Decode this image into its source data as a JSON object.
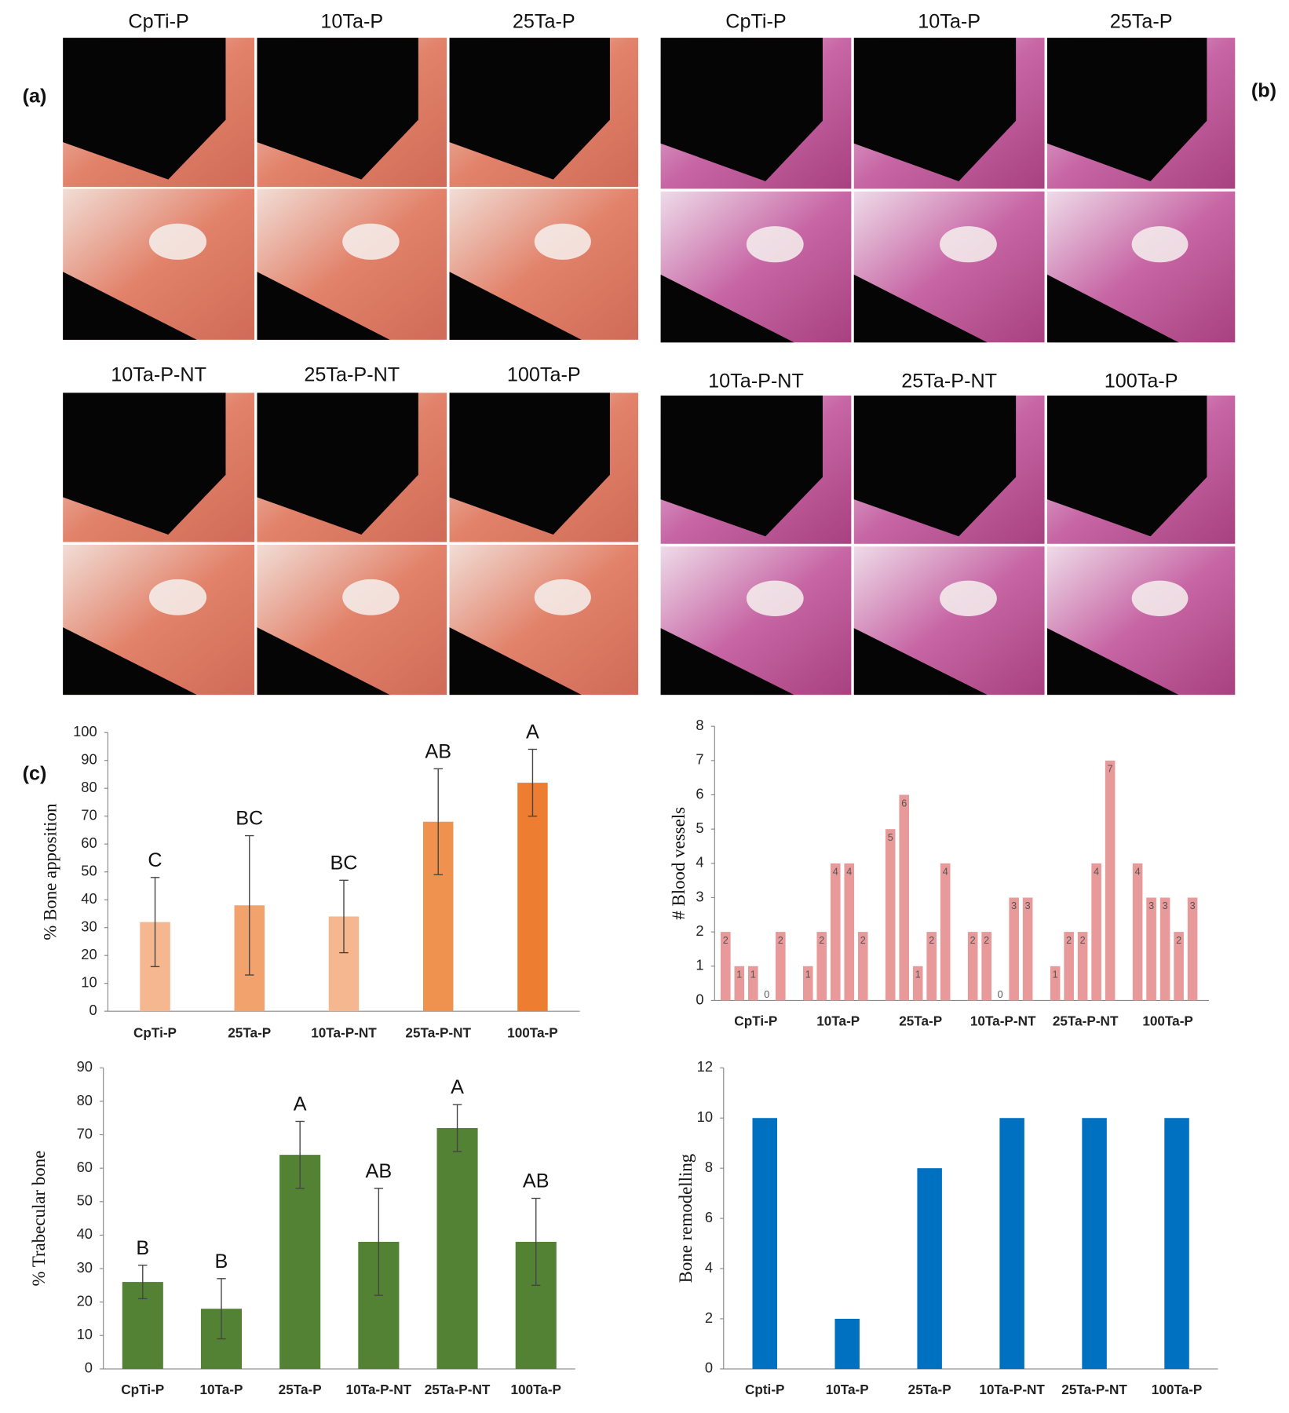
{
  "panel_labels": [
    "(a)",
    "(b)",
    "(c)"
  ],
  "image_panels": {
    "a": {
      "row1": [
        "CpTi-P",
        "10Ta-P",
        "25Ta-P"
      ],
      "row2": [
        "10Ta-P-NT",
        "25Ta-P-NT",
        "100Ta-P"
      ]
    },
    "b": {
      "row1": [
        "CpTi-P",
        "10Ta-P",
        "25Ta-P"
      ],
      "row2": [
        "10Ta-P-NT",
        "25Ta-P-NT",
        "100Ta-P"
      ]
    }
  },
  "chart_data": [
    {
      "type": "bar",
      "y_label": "% Bone apposition",
      "categories": [
        "CpTi-P",
        "25Ta-P",
        "10Ta-P-NT",
        "25Ta-P-NT",
        "100Ta-P"
      ],
      "values": [
        32,
        38,
        34,
        68,
        82
      ],
      "errors": [
        16,
        25,
        13,
        19,
        12
      ],
      "annotations": [
        "C",
        "BC",
        "BC",
        "AB",
        "A"
      ],
      "colors": [
        "#f4b78f",
        "#f2a26c",
        "#f4b78f",
        "#f0924f",
        "#ed7d31"
      ],
      "ylim": [
        0,
        100
      ],
      "yticks": [
        0,
        10,
        20,
        30,
        40,
        50,
        60,
        70,
        80,
        90,
        100
      ]
    },
    {
      "type": "grouped_bar",
      "y_label": "# Blood vessels",
      "categories": [
        "CpTi-P",
        "10Ta-P",
        "25Ta-P",
        "10Ta-P-NT",
        "25Ta-P-NT",
        "100Ta-P"
      ],
      "values": [
        [
          2,
          1,
          1,
          0,
          2
        ],
        [
          1,
          2,
          4,
          4,
          2
        ],
        [
          5,
          6,
          1,
          2,
          4
        ],
        [
          2,
          2,
          0,
          3,
          3
        ],
        [
          1,
          2,
          2,
          4,
          7
        ],
        [
          4,
          3,
          3,
          2,
          3
        ]
      ],
      "color": "#e8999a",
      "ylim": [
        0,
        8
      ],
      "yticks": [
        0,
        1,
        2,
        3,
        4,
        5,
        6,
        7,
        8
      ]
    },
    {
      "type": "bar",
      "y_label": "% Trabecular bone",
      "categories": [
        "CpTi-P",
        "10Ta-P",
        "25Ta-P",
        "10Ta-P-NT",
        "25Ta-P-NT",
        "100Ta-P"
      ],
      "values": [
        26,
        18,
        64,
        38,
        72,
        38
      ],
      "errors": [
        5,
        9,
        10,
        16,
        7,
        13
      ],
      "annotations": [
        "B",
        "B",
        "A",
        "AB",
        "A",
        "AB"
      ],
      "color": "#548235",
      "ylim": [
        0,
        90
      ],
      "yticks": [
        0,
        10,
        20,
        30,
        40,
        50,
        60,
        70,
        80,
        90
      ]
    },
    {
      "type": "bar",
      "y_label": "Bone remodelling",
      "categories": [
        "Cpti-P",
        "10Ta-P",
        "25Ta-P",
        "10Ta-P-NT",
        "25Ta-P-NT",
        "100Ta-P"
      ],
      "values": [
        10,
        2,
        8,
        10,
        10,
        10
      ],
      "color": "#0070c0",
      "ylim": [
        0,
        12
      ],
      "yticks": [
        0,
        2,
        4,
        6,
        8,
        10,
        12
      ]
    }
  ]
}
